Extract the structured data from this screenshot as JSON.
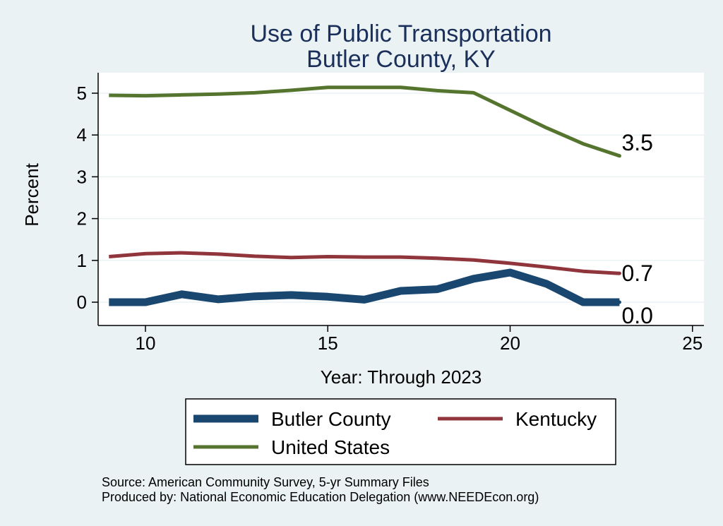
{
  "chart_data": {
    "type": "line",
    "title": [
      "Use of Public Transportation",
      "Butler County, KY"
    ],
    "xlabel": "Year: Through 2023",
    "ylabel": "Percent",
    "xlim": [
      9,
      25
    ],
    "ylim": [
      0,
      5
    ],
    "xticks": [
      10,
      15,
      20,
      25
    ],
    "yticks": [
      0,
      1,
      2,
      3,
      4,
      5
    ],
    "grid": "horizontal",
    "legend_position": "bottom",
    "series": [
      {
        "name": "Butler County",
        "color": "#1a476f",
        "x": [
          9,
          10,
          11,
          12,
          13,
          14,
          15,
          16,
          17,
          18,
          19,
          20,
          21,
          22,
          23
        ],
        "y": [
          0.0,
          0.0,
          0.19,
          0.07,
          0.14,
          0.17,
          0.13,
          0.06,
          0.27,
          0.31,
          0.56,
          0.71,
          0.44,
          0.0,
          0.0
        ],
        "end_label": "0.0"
      },
      {
        "name": "Kentucky",
        "color": "#90353b",
        "x": [
          9,
          10,
          11,
          12,
          13,
          14,
          15,
          16,
          17,
          18,
          19,
          20,
          21,
          22,
          23
        ],
        "y": [
          1.09,
          1.16,
          1.18,
          1.15,
          1.1,
          1.07,
          1.09,
          1.08,
          1.08,
          1.05,
          1.01,
          0.93,
          0.84,
          0.74,
          0.69
        ],
        "end_label": "0.7"
      },
      {
        "name": "United States",
        "color": "#55752f",
        "x": [
          9,
          10,
          11,
          12,
          13,
          14,
          15,
          16,
          17,
          18,
          19,
          20,
          21,
          22,
          23
        ],
        "y": [
          4.95,
          4.94,
          4.96,
          4.98,
          5.01,
          5.07,
          5.14,
          5.14,
          5.14,
          5.06,
          5.01,
          4.59,
          4.17,
          3.79,
          3.5
        ],
        "end_label": "3.5"
      }
    ],
    "notes": [
      "Source: American Community Survey, 5-yr Summary Files",
      "Produced by: National Economic Education Delegation (www.NEEDEcon.org)"
    ]
  }
}
